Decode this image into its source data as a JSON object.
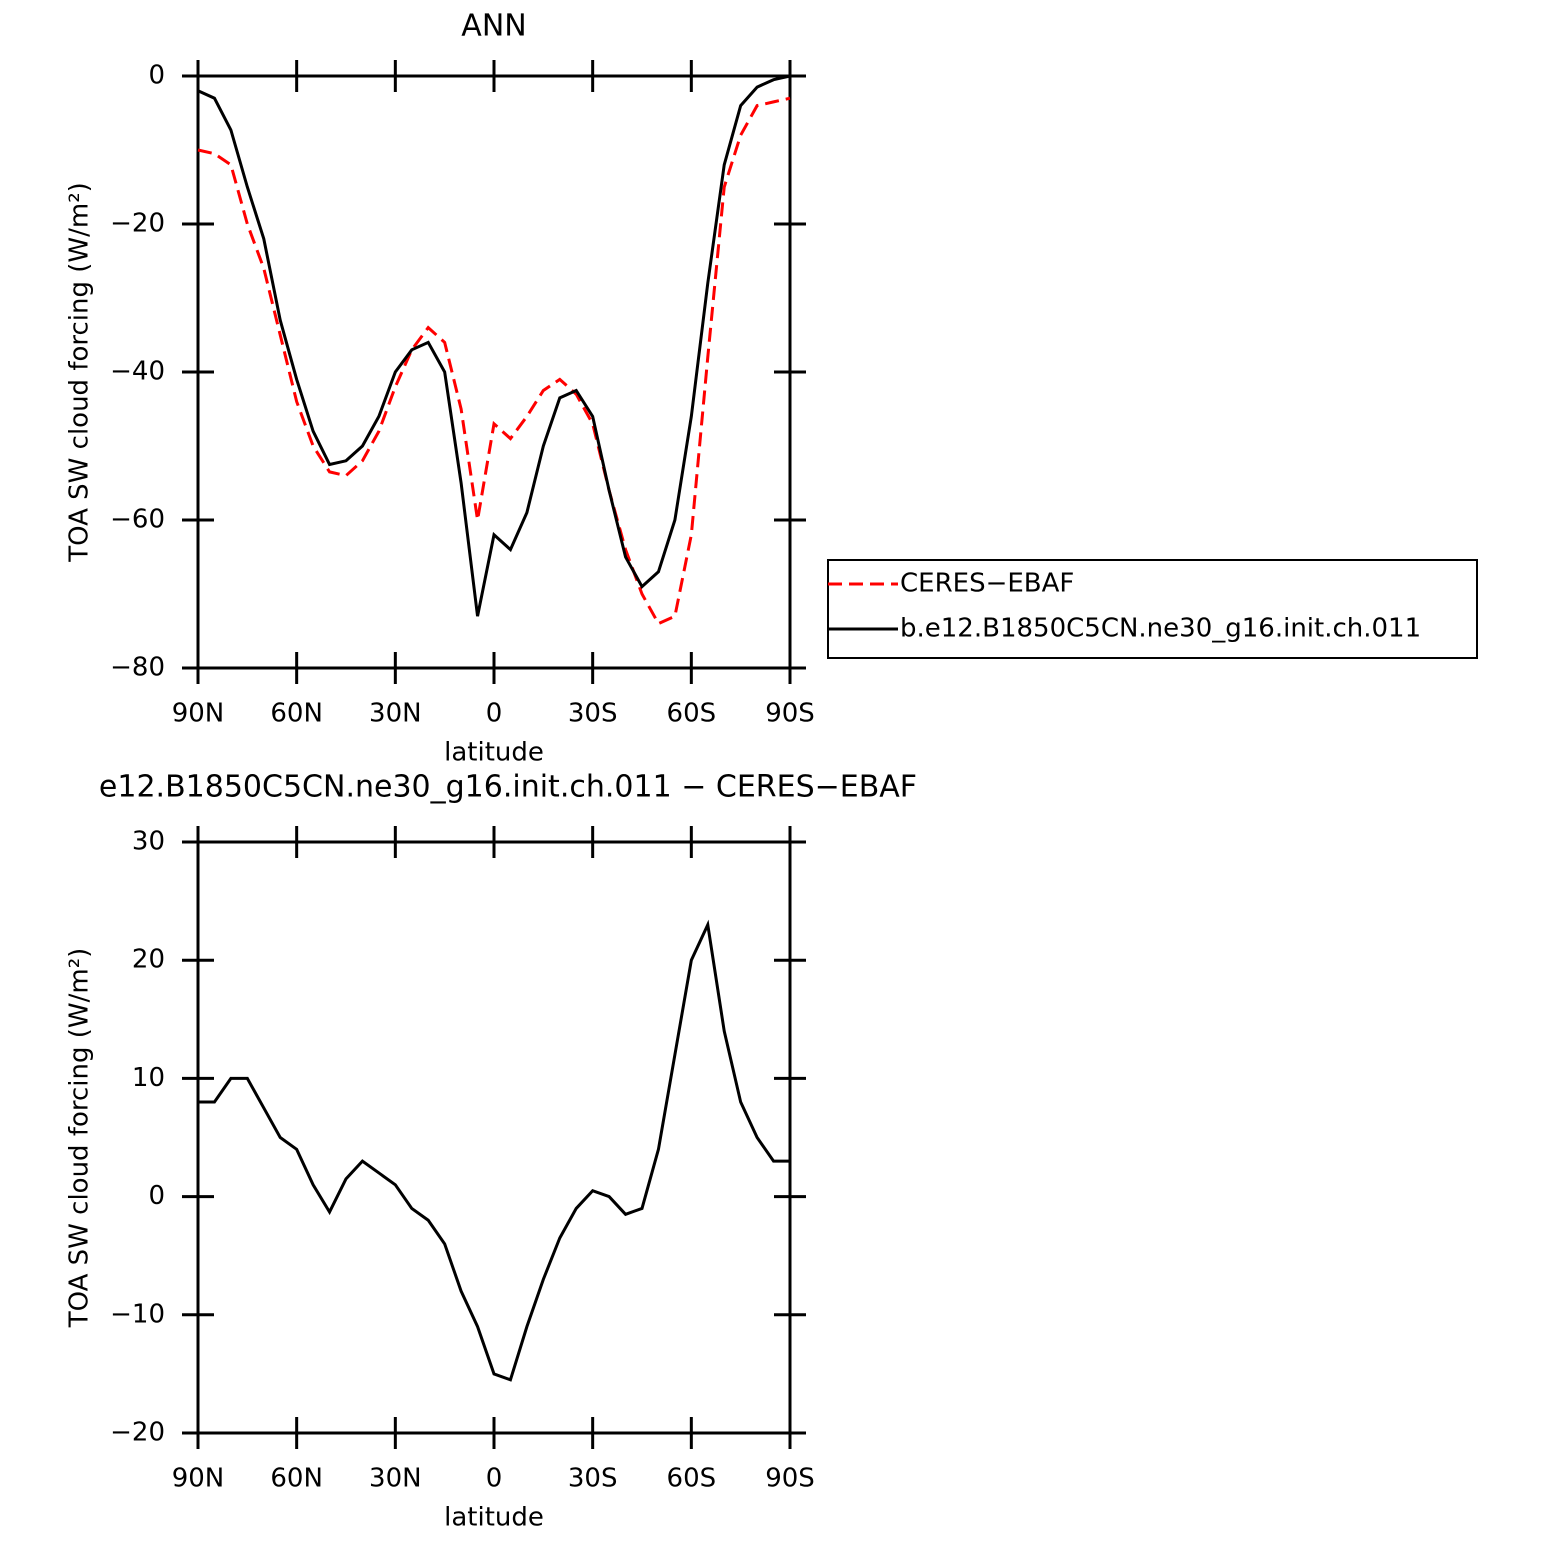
{
  "chart_data": [
    {
      "type": "line",
      "title": "ANN",
      "xlabel": "latitude",
      "ylabel": "TOA SW cloud forcing (W/m²)",
      "x": [
        90,
        85,
        80,
        75,
        70,
        65,
        60,
        55,
        50,
        45,
        40,
        35,
        30,
        25,
        20,
        15,
        10,
        5,
        0,
        -5,
        -10,
        -15,
        -20,
        -25,
        -30,
        -35,
        -40,
        -45,
        -50,
        -55,
        -60,
        -65,
        -70,
        -75,
        -80,
        -85,
        -90
      ],
      "series": [
        {
          "name": "CERES−EBAF",
          "color": "#ff0000",
          "dashed": true,
          "values": [
            -10,
            -10.5,
            -12,
            -20,
            -26,
            -35,
            -44,
            -50,
            -53.5,
            -54,
            -52,
            -48,
            -42,
            -37,
            -34,
            -36,
            -45,
            -60,
            -47,
            -49,
            -46,
            -42.5,
            -41,
            -43,
            -47,
            -56,
            -64,
            -70,
            -74,
            -73,
            -62,
            -38,
            -15,
            -8,
            -4,
            -3.5,
            -3
          ]
        },
        {
          "name": "b.e12.B1850C5CN.ne30_g16.init.ch.011",
          "color": "#000000",
          "dashed": false,
          "values": [
            -2,
            -3,
            -7.3,
            -15,
            -22,
            -33,
            -41,
            -48,
            -52.5,
            -52,
            -50,
            -46,
            -40,
            -37,
            -36,
            -40,
            -55,
            -73,
            -62,
            -64,
            -59,
            -50,
            -43.5,
            -42.5,
            -46,
            -56,
            -65,
            -69,
            -67,
            -60,
            -46,
            -28,
            -12,
            -4,
            -1.5,
            -0.5,
            0
          ]
        }
      ],
      "xlim": [
        90,
        -90
      ],
      "xticks": [
        {
          "value": 90,
          "label": "90N"
        },
        {
          "value": 60,
          "label": "60N"
        },
        {
          "value": 30,
          "label": "30N"
        },
        0,
        {
          "value": -30,
          "label": "30S"
        },
        {
          "value": -60,
          "label": "60S"
        },
        {
          "value": -90,
          "label": "90S"
        }
      ],
      "ylim": [
        -80,
        0
      ],
      "yticks": [
        0,
        {
          "value": -20,
          "label": "−20"
        },
        {
          "value": -40,
          "label": "−40"
        },
        {
          "value": -60,
          "label": "−60"
        },
        {
          "value": -80,
          "label": "−80"
        }
      ],
      "legend": "right"
    },
    {
      "type": "line",
      "title": "e12.B1850C5CN.ne30_g16.init.ch.011 − CERES−EBAF",
      "xlabel": "latitude",
      "ylabel": "TOA SW cloud forcing (W/m²)",
      "x": [
        90,
        85,
        80,
        75,
        70,
        65,
        60,
        55,
        50,
        45,
        40,
        35,
        30,
        25,
        20,
        15,
        10,
        5,
        0,
        -5,
        -10,
        -15,
        -20,
        -25,
        -30,
        -35,
        -40,
        -45,
        -50,
        -55,
        -60,
        -65,
        -70,
        -75,
        -80,
        -85,
        -90
      ],
      "values": [
        8,
        8,
        10,
        10,
        7.5,
        5,
        4,
        1,
        -1.3,
        1.5,
        3,
        2,
        1,
        -1,
        -2,
        -4,
        -8,
        -11,
        -15,
        -15.5,
        -11,
        -7,
        -3.5,
        -1,
        0.5,
        0,
        -1.5,
        -1,
        4,
        12,
        20,
        23,
        14,
        8,
        5,
        3,
        3
      ],
      "color": "#000000",
      "xlim": [
        90,
        -90
      ],
      "xticks": [
        {
          "value": 90,
          "label": "90N"
        },
        {
          "value": 60,
          "label": "60N"
        },
        {
          "value": 30,
          "label": "30N"
        },
        0,
        {
          "value": -30,
          "label": "30S"
        },
        {
          "value": -60,
          "label": "60S"
        },
        {
          "value": -90,
          "label": "90S"
        }
      ],
      "ylim": [
        -20,
        30
      ],
      "yticks": [
        30,
        20,
        10,
        0,
        {
          "value": -10,
          "label": "−10"
        },
        {
          "value": -20,
          "label": "−20"
        }
      ]
    }
  ]
}
